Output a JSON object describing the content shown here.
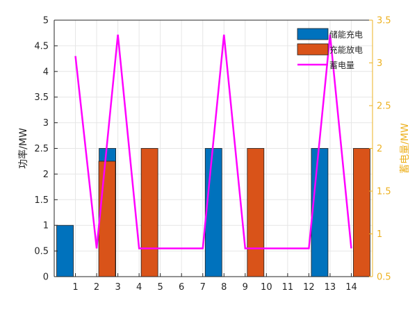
{
  "chart_data": {
    "type": "bar",
    "categories": [
      "1",
      "2",
      "3",
      "4",
      "5",
      "6",
      "7",
      "8",
      "9",
      "10",
      "11",
      "12",
      "13",
      "14"
    ],
    "x": [
      1,
      2,
      3,
      4,
      5,
      6,
      7,
      8,
      9,
      10,
      11,
      12,
      13,
      14
    ],
    "series": [
      {
        "name": "储能充电",
        "kind": "bar",
        "axis": "left",
        "color": "#0072BD",
        "values": [
          1,
          0,
          2.5,
          0,
          0,
          0,
          0,
          2.5,
          0,
          0,
          0,
          0,
          2.5,
          0
        ]
      },
      {
        "name": "充能放电",
        "kind": "bar",
        "axis": "left",
        "color": "#D95319",
        "values": [
          0,
          2.25,
          0,
          2.5,
          0,
          0,
          0,
          0,
          2.5,
          0,
          0,
          0,
          0,
          2.5
        ]
      },
      {
        "name": "蓄电量",
        "kind": "line",
        "axis": "right",
        "color": "#FF00FF",
        "values": [
          3.08,
          0.83,
          3.33,
          0.83,
          0.83,
          0.83,
          0.83,
          3.33,
          0.83,
          0.83,
          0.83,
          0.83,
          3.33,
          0.83
        ]
      }
    ],
    "ylabel": "功率/MW",
    "y2label": "蓄电量/MW",
    "ylim": [
      0,
      5
    ],
    "y2lim": [
      0.5,
      3.5
    ],
    "xlim": [
      0,
      15
    ],
    "yticks": [
      "0",
      "0.5",
      "1",
      "1.5",
      "2",
      "2.5",
      "3",
      "3.5",
      "4",
      "4.5",
      "5"
    ],
    "y2ticks": [
      "0.5",
      "1",
      "1.5",
      "2",
      "2.5",
      "3",
      "3.5"
    ],
    "grid": true,
    "legend_position": "top-right",
    "colors": {
      "left_axis": "#262626",
      "right_axis": "#EDB120",
      "grid": "#e6e6e6"
    }
  }
}
